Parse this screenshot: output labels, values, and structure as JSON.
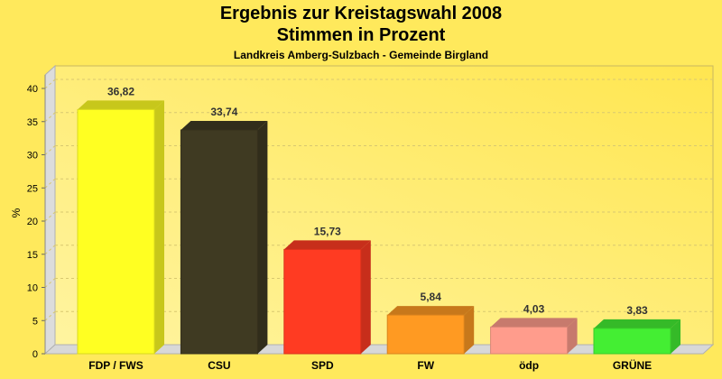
{
  "chart_data": {
    "type": "bar",
    "title": "Ergebnis zur Kreistagswahl 2008",
    "subtitle": "Stimmen in Prozent",
    "caption": "Landkreis Amberg-Sulzbach - Gemeinde Birgland",
    "ylabel": "%",
    "xlabel": "",
    "ylim": [
      0,
      40
    ],
    "yticks": [
      0,
      5,
      10,
      15,
      20,
      25,
      30,
      35,
      40
    ],
    "grid": true,
    "style": "3d",
    "categories": [
      "FDP / FWS",
      "CSU",
      "SPD",
      "FW",
      "ödp",
      "GRÜNE"
    ],
    "values": [
      36.82,
      33.74,
      15.73,
      5.84,
      4.03,
      3.83
    ],
    "value_labels": [
      "36,82",
      "33,74",
      "15,73",
      "5,84",
      "4,03",
      "3,83"
    ],
    "colors": [
      "#ffff22",
      "#3f3a22",
      "#ff3b22",
      "#ff9a22",
      "#ff9c8c",
      "#44ee33"
    ]
  }
}
